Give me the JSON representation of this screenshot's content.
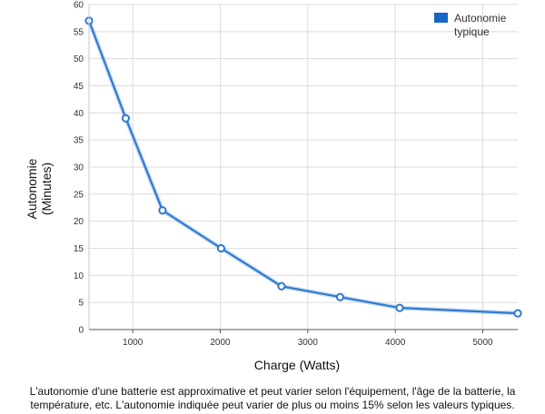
{
  "chart_data": {
    "type": "line",
    "x": [
      500,
      920,
      1340,
      2010,
      2700,
      3370,
      4050,
      5400
    ],
    "series": [
      {
        "name": "Autonomie typique",
        "values": [
          57,
          39,
          22,
          15,
          8,
          6,
          4,
          3
        ],
        "color": "#2f7ad1"
      }
    ],
    "xlabel": "Charge (Watts)",
    "ylabel": [
      "Autonomie",
      "(Minutes)"
    ],
    "xlim": [
      500,
      5400
    ],
    "ylim": [
      0,
      60
    ],
    "x_ticks": [
      1000,
      2000,
      3000,
      4000,
      5000
    ],
    "y_ticks": [
      0,
      5,
      10,
      15,
      20,
      25,
      30,
      35,
      40,
      45,
      50,
      55,
      60
    ],
    "grid": true,
    "legend": {
      "position": "top-right",
      "label_lines": [
        "Autonomie",
        "typique"
      ],
      "swatch_color": "#1666c5"
    },
    "footnote": "L'autonomie d'une batterie est approximative et peut varier selon l'équipement, l'âge de la batterie, la température, etc. L'autonomie indiquée peut varier de plus ou moins 15% selon les valeurs typiques."
  }
}
